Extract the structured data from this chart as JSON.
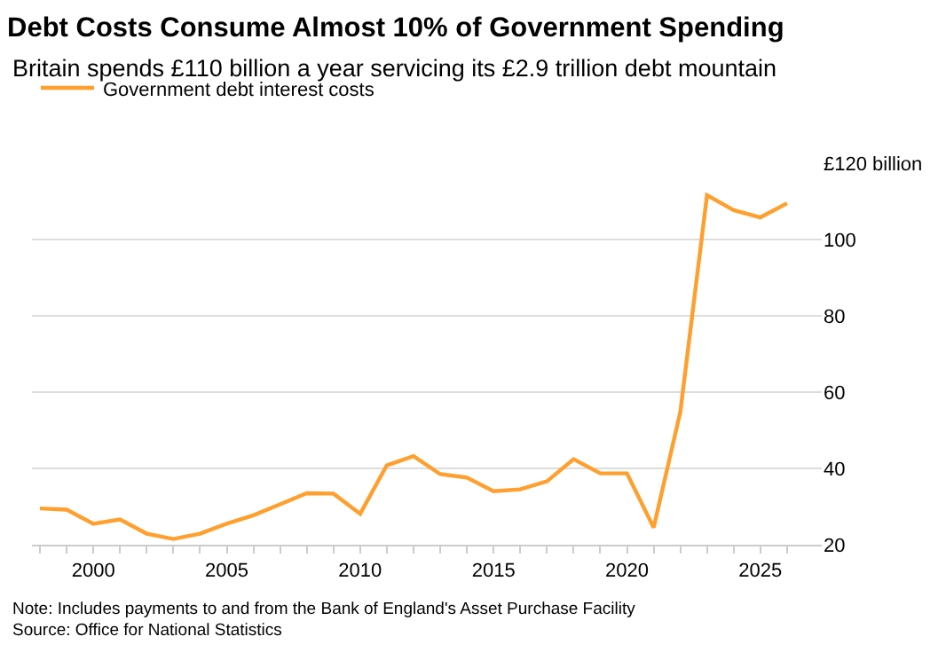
{
  "chart_data": {
    "type": "line",
    "title": "Debt Costs Consume Almost 10% of Government Spending",
    "subtitle": "Britain spends £110 billion a year servicing its £2.9 trillion debt mountain",
    "x": [
      1998,
      1999,
      2000,
      2001,
      2002,
      2003,
      2004,
      2005,
      2006,
      2007,
      2008,
      2009,
      2010,
      2011,
      2012,
      2013,
      2014,
      2015,
      2016,
      2017,
      2018,
      2019,
      2020,
      2021,
      2022,
      2023,
      2024,
      2025,
      2026
    ],
    "series": [
      {
        "name": "Government debt interest costs",
        "color": "#ff9f2e",
        "values": [
          29.5,
          29.2,
          25.5,
          26.6,
          22.9,
          21.5,
          22.9,
          25.5,
          27.7,
          30.6,
          33.5,
          33.4,
          28.1,
          40.8,
          43.2,
          38.5,
          37.6,
          34.0,
          34.5,
          36.6,
          42.4,
          38.7,
          38.7,
          24.5,
          54.8,
          111.6,
          107.7,
          105.8,
          109.5
        ]
      }
    ],
    "xlim": [
      1997.7,
      2027.3
    ],
    "xticks": [
      {
        "value": 1998,
        "label": null
      },
      {
        "value": 1999,
        "label": null
      },
      2000,
      {
        "value": 2001,
        "label": null
      },
      {
        "value": 2002,
        "label": null
      },
      {
        "value": 2003,
        "label": null
      },
      {
        "value": 2004,
        "label": null
      },
      2005,
      {
        "value": 2006,
        "label": null
      },
      {
        "value": 2007,
        "label": null
      },
      {
        "value": 2008,
        "label": null
      },
      {
        "value": 2009,
        "label": null
      },
      2010,
      {
        "value": 2011,
        "label": null
      },
      {
        "value": 2012,
        "label": null
      },
      {
        "value": 2013,
        "label": null
      },
      {
        "value": 2014,
        "label": null
      },
      2015,
      {
        "value": 2016,
        "label": null
      },
      {
        "value": 2017,
        "label": null
      },
      {
        "value": 2018,
        "label": null
      },
      {
        "value": 2019,
        "label": null
      },
      2020,
      {
        "value": 2021,
        "label": null
      },
      {
        "value": 2022,
        "label": null
      },
      {
        "value": 2023,
        "label": null
      },
      {
        "value": 2024,
        "label": null
      },
      2025,
      {
        "value": 2026,
        "label": null
      }
    ],
    "ylim": [
      20,
      120
    ],
    "yticks": [
      20,
      40,
      60,
      80,
      100,
      {
        "value": 120,
        "label": "£120 billion"
      }
    ],
    "grid": "y",
    "legend": "top left",
    "marker": "none",
    "line_style": "solid",
    "annotations": [
      "Note: Includes payments to and from the Bank of England's Asset Purchase Facility",
      "Source: Office for National Statistics"
    ]
  }
}
